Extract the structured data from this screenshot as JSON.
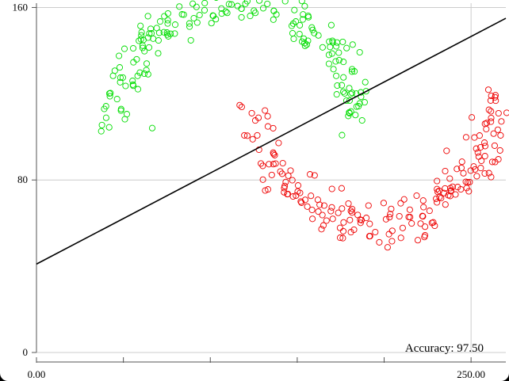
{
  "chart_data": {
    "type": "scatter",
    "title": "",
    "xlabel": "",
    "ylabel": "",
    "xlim": [
      0,
      270
    ],
    "ylim": [
      0,
      162
    ],
    "x_ticks": [
      0,
      50,
      100,
      150,
      200,
      250
    ],
    "x_tick_labels": [
      "0.00",
      "",
      "",
      "",
      "",
      "250.00"
    ],
    "y_ticks": [
      0,
      80,
      160
    ],
    "y_tick_labels": [
      "0",
      "80",
      "160"
    ],
    "grid": true,
    "annotation": "Accuracy: 97.50",
    "decision_boundary": {
      "x": [
        0,
        270
      ],
      "y": [
        41,
        155
      ]
    },
    "series": [
      {
        "color": "#00dd00",
        "moon": {
          "cx": 115,
          "cy": 104,
          "r": 70,
          "start_deg": 5,
          "end_deg": 175,
          "bulge": 1,
          "count": 200,
          "noise": 5.5,
          "seed": 7
        }
      },
      {
        "color": "#ee0000",
        "moon": {
          "cx": 193,
          "cy": 120,
          "r": 72,
          "start_deg": 185,
          "end_deg": 355,
          "bulge": 1,
          "count": 200,
          "noise": 5.5,
          "seed": 13
        }
      }
    ]
  },
  "colors": {
    "background": "#ffffff",
    "grid": "#cccccc",
    "axis": "#555555",
    "line": "#000000"
  }
}
